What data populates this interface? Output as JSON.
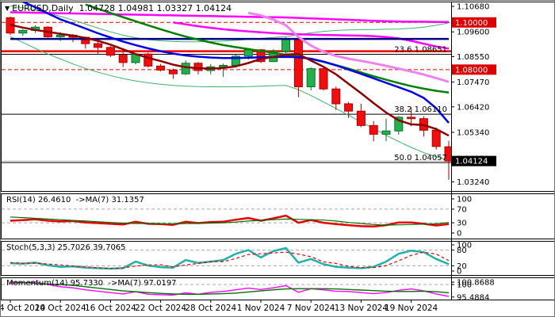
{
  "window": {
    "symbol_marker": "▼",
    "title": "EURUSD,Daily",
    "ohlc_text": "1.04728 1.04981 1.03327 1.04124"
  },
  "price_axis": {
    "ticks": [
      {
        "text": "1.10680",
        "price": 1.1068
      },
      {
        "text": "1.09600",
        "price": 1.096
      },
      {
        "text": "1.08550",
        "price": 1.0855
      },
      {
        "text": "1.07470",
        "price": 1.0747
      },
      {
        "text": "1.06420",
        "price": 1.0642
      },
      {
        "text": "1.05340",
        "price": 1.0534
      },
      {
        "text": "1.04230",
        "price": 1.0423
      },
      {
        "text": "1.03240",
        "price": 1.0324
      }
    ],
    "highlights": [
      {
        "text": "1.10000",
        "price": 1.1,
        "bg": "#dd0000",
        "fg": "#ffffff"
      },
      {
        "text": "1.08000",
        "price": 1.08,
        "bg": "#dd0000",
        "fg": "#ffffff"
      },
      {
        "text": "1.04124",
        "price": 1.04124,
        "bg": "#000000",
        "fg": "#ffffff"
      }
    ]
  },
  "x_axis": {
    "labels": [
      {
        "text": "4 Oct 2024",
        "bar": 0
      },
      {
        "text": "10 Oct 2024",
        "bar": 4
      },
      {
        "text": "16 Oct 2024",
        "bar": 8
      },
      {
        "text": "22 Oct 2024",
        "bar": 12
      },
      {
        "text": "28 Oct 2024",
        "bar": 16
      },
      {
        "text": "1 Nov 2024",
        "bar": 20
      },
      {
        "text": "7 Nov 2024",
        "bar": 24
      },
      {
        "text": "13 Nov 2024",
        "bar": 28
      },
      {
        "text": "19 Nov 2024",
        "bar": 32
      }
    ]
  },
  "chart_data": {
    "type": "candlestick",
    "symbol": "EURUSD",
    "timeframe": "Daily",
    "title": "EURUSD,Daily 1.04728 1.04981 1.03327 1.04124",
    "ylim": [
      1.0284,
      1.1085
    ],
    "grid": false,
    "colors": {
      "bull_fill": "#22b14c",
      "bull_stroke": "#0d6b2a",
      "bear_fill": "#f10e0e",
      "bear_stroke": "#b00000"
    },
    "candles": {
      "dates": [
        "4 Oct",
        "7 Oct",
        "8 Oct",
        "9 Oct",
        "10 Oct",
        "11 Oct",
        "14 Oct",
        "15 Oct",
        "16 Oct",
        "17 Oct",
        "18 Oct",
        "21 Oct",
        "22 Oct",
        "23 Oct",
        "24 Oct",
        "25 Oct",
        "28 Oct",
        "29 Oct",
        "30 Oct",
        "31 Oct",
        "1 Nov",
        "4 Nov",
        "5 Nov",
        "6 Nov",
        "7 Nov",
        "8 Nov",
        "11 Nov",
        "12 Nov",
        "13 Nov",
        "14 Nov",
        "15 Nov",
        "18 Nov",
        "19 Nov",
        "20 Nov",
        "21 Nov",
        "22 Nov"
      ],
      "open": [
        1.102,
        1.0955,
        1.0966,
        1.098,
        1.0939,
        1.0946,
        1.0937,
        1.091,
        1.0894,
        1.0861,
        1.083,
        1.0866,
        1.0815,
        1.0798,
        1.0782,
        1.0827,
        1.0796,
        1.0812,
        1.0818,
        1.0857,
        1.0884,
        1.0834,
        1.0877,
        1.093,
        1.0727,
        1.0804,
        1.0718,
        1.0655,
        1.0624,
        1.0563,
        1.0526,
        1.054,
        1.0598,
        1.0592,
        1.0543,
        1.04728
      ],
      "high": [
        1.1025,
        1.0972,
        1.0988,
        1.0984,
        1.0958,
        1.0951,
        1.094,
        1.092,
        1.0901,
        1.0874,
        1.0869,
        1.0872,
        1.0824,
        1.0805,
        1.0839,
        1.0832,
        1.0824,
        1.0826,
        1.0863,
        1.0888,
        1.0887,
        1.0887,
        1.0937,
        1.0937,
        1.081,
        1.0806,
        1.0728,
        1.0663,
        1.0655,
        1.0582,
        1.0592,
        1.0603,
        1.064,
        1.0602,
        1.0554,
        1.04981
      ],
      "low": [
        1.0947,
        1.0943,
        1.0955,
        1.0935,
        1.0922,
        1.0916,
        1.0889,
        1.0867,
        1.0853,
        1.0811,
        1.0822,
        1.081,
        1.0792,
        1.0761,
        1.0777,
        1.078,
        1.078,
        1.0769,
        1.0808,
        1.0843,
        1.0828,
        1.0832,
        1.0869,
        1.0683,
        1.0712,
        1.0711,
        1.0629,
        1.0595,
        1.0556,
        1.0496,
        1.0497,
        1.0524,
        1.056,
        1.0516,
        1.0461,
        1.03327
      ],
      "close": [
        1.0955,
        1.0966,
        1.098,
        1.0939,
        1.0946,
        1.0937,
        1.091,
        1.0894,
        1.0861,
        1.083,
        1.0866,
        1.0815,
        1.0798,
        1.0782,
        1.0827,
        1.0796,
        1.0812,
        1.0818,
        1.0857,
        1.0884,
        1.0834,
        1.0877,
        1.093,
        1.0727,
        1.0804,
        1.0718,
        1.0655,
        1.0624,
        1.0563,
        1.0526,
        1.054,
        1.0598,
        1.0592,
        1.0543,
        1.0474,
        1.04124
      ]
    },
    "overlays": [
      {
        "name": "band-upper",
        "color": "#3cb371",
        "width": 1,
        "values": [
          1.107,
          1.1062,
          1.1052,
          1.104,
          1.1026,
          1.101,
          1.0993,
          1.0976,
          1.096,
          1.0946,
          1.0935,
          1.0927,
          1.0922,
          1.0919,
          1.0918,
          1.0918,
          1.0919,
          1.0921,
          1.0924,
          1.0928,
          1.0932,
          1.0936,
          1.094,
          1.0948,
          1.0956,
          1.0962,
          1.0966,
          1.0968,
          1.0969,
          1.097,
          1.0971,
          1.0972,
          1.0975,
          1.098,
          1.0988,
          1.0998
        ]
      },
      {
        "name": "band-lower",
        "color": "#3cb371",
        "width": 1,
        "values": [
          1.094,
          1.0915,
          1.089,
          1.0866,
          1.0845,
          1.0824,
          1.0805,
          1.0789,
          1.0775,
          1.0762,
          1.0752,
          1.0744,
          1.0738,
          1.0733,
          1.073,
          1.0728,
          1.0727,
          1.0727,
          1.0727,
          1.0728,
          1.073,
          1.0732,
          1.0733,
          1.0715,
          1.069,
          1.0663,
          1.0635,
          1.0607,
          1.0578,
          1.055,
          1.0522,
          1.0495,
          1.047,
          1.0448,
          1.043,
          1.0415
        ]
      },
      {
        "name": "ma-magenta-slow",
        "color": "#ff00ff",
        "width": 2.5,
        "values": [
          1.1043,
          1.1042,
          1.1041,
          1.104,
          1.1039,
          1.1038,
          1.1037,
          1.1036,
          1.1035,
          1.1034,
          1.1033,
          1.1032,
          1.1031,
          1.103,
          1.1029,
          1.1028,
          1.1027,
          1.1026,
          1.1025,
          1.1024,
          1.1023,
          1.1022,
          1.1021,
          1.1019,
          1.1017,
          1.1015,
          1.1013,
          1.1011,
          1.1009,
          1.1007,
          1.1005,
          1.1004,
          1.1003,
          1.1003,
          1.1002,
          1.1002
        ]
      },
      {
        "name": "ma-magenta-mid",
        "color": "#ff00ff",
        "width": 2.5,
        "values": [
          null,
          null,
          null,
          null,
          null,
          null,
          null,
          null,
          null,
          null,
          null,
          null,
          null,
          1.1,
          1.0992,
          1.0984,
          1.0977,
          1.0971,
          1.0966,
          1.0962,
          1.0958,
          1.0955,
          1.0952,
          1.095,
          1.0948,
          1.0947,
          1.0946,
          1.0945,
          1.0944,
          1.0942,
          1.0938,
          1.0932,
          1.0922,
          1.091,
          1.0898,
          1.0889
        ]
      },
      {
        "name": "ma-navy-flat",
        "color": "#000080",
        "width": 2.5,
        "values": [
          1.093,
          1.093,
          1.093,
          1.093,
          1.093,
          1.093,
          1.093,
          1.093,
          1.093,
          1.093,
          1.093,
          1.093,
          1.093,
          1.093,
          1.093,
          1.093,
          1.093,
          1.093,
          1.093,
          1.093,
          1.093,
          1.093,
          1.093,
          1.093,
          1.093,
          1.093,
          1.093,
          1.093,
          1.093,
          1.093,
          1.093,
          1.093,
          1.093,
          1.093,
          1.093,
          1.093
        ]
      },
      {
        "name": "ma-plum",
        "color": "#ee82ee",
        "width": 3,
        "values": [
          null,
          null,
          null,
          null,
          null,
          null,
          null,
          null,
          null,
          null,
          null,
          null,
          null,
          null,
          null,
          null,
          null,
          null,
          null,
          1.104,
          1.103,
          1.1012,
          1.0988,
          1.0938,
          1.0902,
          1.0876,
          1.0858,
          1.0846,
          1.0837,
          1.0827,
          1.0816,
          1.0804,
          1.0792,
          1.0779,
          1.0764,
          1.0748
        ]
      },
      {
        "name": "ma-green",
        "color": "#008000",
        "width": 2.5,
        "values": [
          null,
          null,
          null,
          null,
          null,
          null,
          1.1076,
          1.1058,
          1.104,
          1.1022,
          1.1005,
          1.0988,
          1.0971,
          1.0955,
          1.094,
          1.0927,
          1.0915,
          1.0904,
          1.0895,
          1.0887,
          1.0879,
          1.0871,
          1.0863,
          1.0855,
          1.0845,
          1.0833,
          1.0819,
          1.0804,
          1.0788,
          1.0772,
          1.0757,
          1.0743,
          1.073,
          1.0719,
          1.071,
          1.0703
        ]
      },
      {
        "name": "ma-blue",
        "color": "#0000e6",
        "width": 2.5,
        "values": [
          null,
          1.1088,
          1.1064,
          1.1038,
          1.1013,
          1.0994,
          1.0974,
          1.0954,
          1.0936,
          1.0919,
          1.0904,
          1.089,
          1.0878,
          1.0868,
          1.086,
          1.0855,
          1.0851,
          1.0849,
          1.0849,
          1.085,
          1.0852,
          1.0853,
          1.0854,
          1.0852,
          1.0846,
          1.0834,
          1.0818,
          1.08,
          1.0782,
          1.0763,
          1.0744,
          1.0725,
          1.0706,
          1.068,
          1.0636,
          1.0574
        ]
      },
      {
        "name": "ma-darkred-fast",
        "color": "#8b0000",
        "width": 2.5,
        "values": [
          1.099,
          1.0978,
          1.0968,
          1.096,
          1.0952,
          1.0944,
          1.0934,
          1.0922,
          1.0906,
          1.0886,
          1.0866,
          1.085,
          1.0836,
          1.0821,
          1.081,
          1.0806,
          1.0804,
          1.0807,
          1.0814,
          1.0828,
          1.0845,
          1.0854,
          1.0864,
          1.0866,
          1.0838,
          1.0812,
          1.078,
          1.074,
          1.07,
          1.0658,
          1.0618,
          1.0585,
          1.0568,
          1.0565,
          1.0548,
          1.052
        ]
      }
    ],
    "hlines": [
      {
        "name": "level-1.10-dashed",
        "price": 1.1,
        "color": "#ee0000",
        "width": 1,
        "dash": "5,3",
        "label": ""
      },
      {
        "name": "level-1.08-dashed",
        "price": 1.08,
        "color": "#ee0000",
        "width": 1,
        "dash": "5,3",
        "label": ""
      },
      {
        "name": "resistance-red-solid",
        "price": 1.0878,
        "color": "#ee0000",
        "width": 2.5,
        "dash": "",
        "label": ""
      },
      {
        "name": "fib-23.6",
        "price": 1.08651,
        "color": "#000000",
        "width": 1,
        "dash": "",
        "label": "23.6 1.08651"
      },
      {
        "name": "fib-38.2",
        "price": 1.0611,
        "color": "#000000",
        "width": 1,
        "dash": "",
        "label": "38.2 1.06110"
      },
      {
        "name": "fib-50.0",
        "price": 1.04057,
        "color": "#000000",
        "width": 1,
        "dash": "",
        "label": "50.0 1.04057"
      },
      {
        "name": "ask-line",
        "price": 1.0412,
        "color": "#bbbbbb",
        "width": 1,
        "dash": "",
        "label": ""
      }
    ],
    "panes": [
      {
        "id": "rsi",
        "header": "RSI(14) 26.4610  ->MA(7) 31.1357",
        "levels": [
          70,
          30
        ],
        "axis_labels": [
          {
            "text": "100",
            "v": 100
          },
          {
            "text": "70",
            "v": 70
          },
          {
            "text": "30",
            "v": 30
          },
          {
            "text": "0",
            "v": 0
          }
        ],
        "series": [
          {
            "name": "rsi-main",
            "color": "#e60000",
            "width": 2.5,
            "dash": "",
            "values": [
              36,
              38,
              40,
              36,
              34,
              35,
              31,
              29,
              27,
              25,
              33,
              27,
              26,
              24,
              33,
              29,
              32,
              33,
              39,
              44,
              36,
              43,
              51,
              30,
              38,
              30,
              26,
              23,
              20,
              19,
              23,
              31,
              31,
              27,
              22,
              26
            ]
          },
          {
            "name": "rsi-ma",
            "color": "#007000",
            "width": 1.2,
            "dash": "",
            "values": [
              47,
              45,
              43,
              41,
              39,
              37,
              35,
              33,
              31,
              29,
              28,
              28,
              27,
              27,
              28,
              28,
              29,
              30,
              32,
              35,
              37,
              39,
              41,
              40,
              39,
              38,
              35,
              31,
              28,
              25,
              23,
              24,
              25,
              26,
              27,
              31
            ]
          }
        ]
      },
      {
        "id": "stoch",
        "header": "Stoch(5,3,3) 25.7026 39.7065",
        "levels": [
          80,
          20
        ],
        "axis_labels": [
          {
            "text": "100",
            "v": 100
          },
          {
            "text": "80",
            "v": 80
          },
          {
            "text": "20",
            "v": 20
          },
          {
            "text": "0",
            "v": 0
          }
        ],
        "series": [
          {
            "name": "stoch-main",
            "color": "#20b2aa",
            "width": 2.5,
            "dash": "",
            "values": [
              30,
              28,
              32,
              22,
              16,
              18,
              13,
              11,
              9,
              11,
              36,
              21,
              15,
              13,
              42,
              31,
              36,
              42,
              66,
              80,
              52,
              76,
              88,
              32,
              46,
              26,
              16,
              13,
              11,
              16,
              36,
              66,
              78,
              72,
              46,
              26
            ]
          },
          {
            "name": "stoch-signal",
            "color": "#e60000",
            "width": 1.2,
            "dash": "4,3",
            "values": [
              32,
              30,
              30,
              27,
              23,
              19,
              16,
              12,
              10,
              12,
              19,
              23,
              24,
              16,
              23,
              29,
              36,
              36,
              48,
              63,
              66,
              69,
              72,
              65,
              55,
              35,
              29,
              18,
              13,
              13,
              21,
              39,
              60,
              72,
              65,
              40
            ]
          }
        ]
      },
      {
        "id": "momentum",
        "header": "Momentum(14) 95.7330  ->MA(7) 97.0197",
        "levels": [
          100
        ],
        "axis_labels": [
          {
            "text": "100.8688",
            "v": 100.8688
          },
          {
            "text": "100",
            "v": 100
          },
          {
            "text": "95.4884",
            "v": 95.4884
          }
        ],
        "series": [
          {
            "name": "momentum-main",
            "color": "#ff00ff",
            "width": 1.4,
            "dash": "",
            "values": [
              100.4,
              100.6,
              100.9,
              100.0,
              99.2,
              98.8,
              98.1,
              97.6,
              97.1,
              96.6,
              97.4,
              96.5,
              96.3,
              96.2,
              97.0,
              96.5,
              97.2,
              97.5,
              98.1,
              98.7,
              98.2,
              98.8,
              99.6,
              97.2,
              98.5,
              98.1,
              97.6,
              97.5,
              97.1,
              96.7,
              97.1,
              97.9,
              98.4,
              97.7,
              96.6,
              95.73
            ]
          },
          {
            "name": "momentum-ma",
            "color": "#007000",
            "width": 1.4,
            "dash": "",
            "values": [
              100.9,
              100.7,
              100.4,
              100.2,
              100.0,
              99.7,
              99.2,
              98.7,
              98.2,
              97.7,
              97.4,
              97.1,
              96.8,
              96.6,
              96.5,
              96.5,
              96.6,
              96.7,
              96.9,
              97.3,
              97.7,
              98.1,
              98.4,
              98.5,
              98.5,
              98.5,
              98.4,
              98.2,
              98.0,
              97.8,
              97.6,
              97.5,
              97.5,
              97.6,
              97.4,
              97.02
            ]
          }
        ]
      }
    ]
  }
}
